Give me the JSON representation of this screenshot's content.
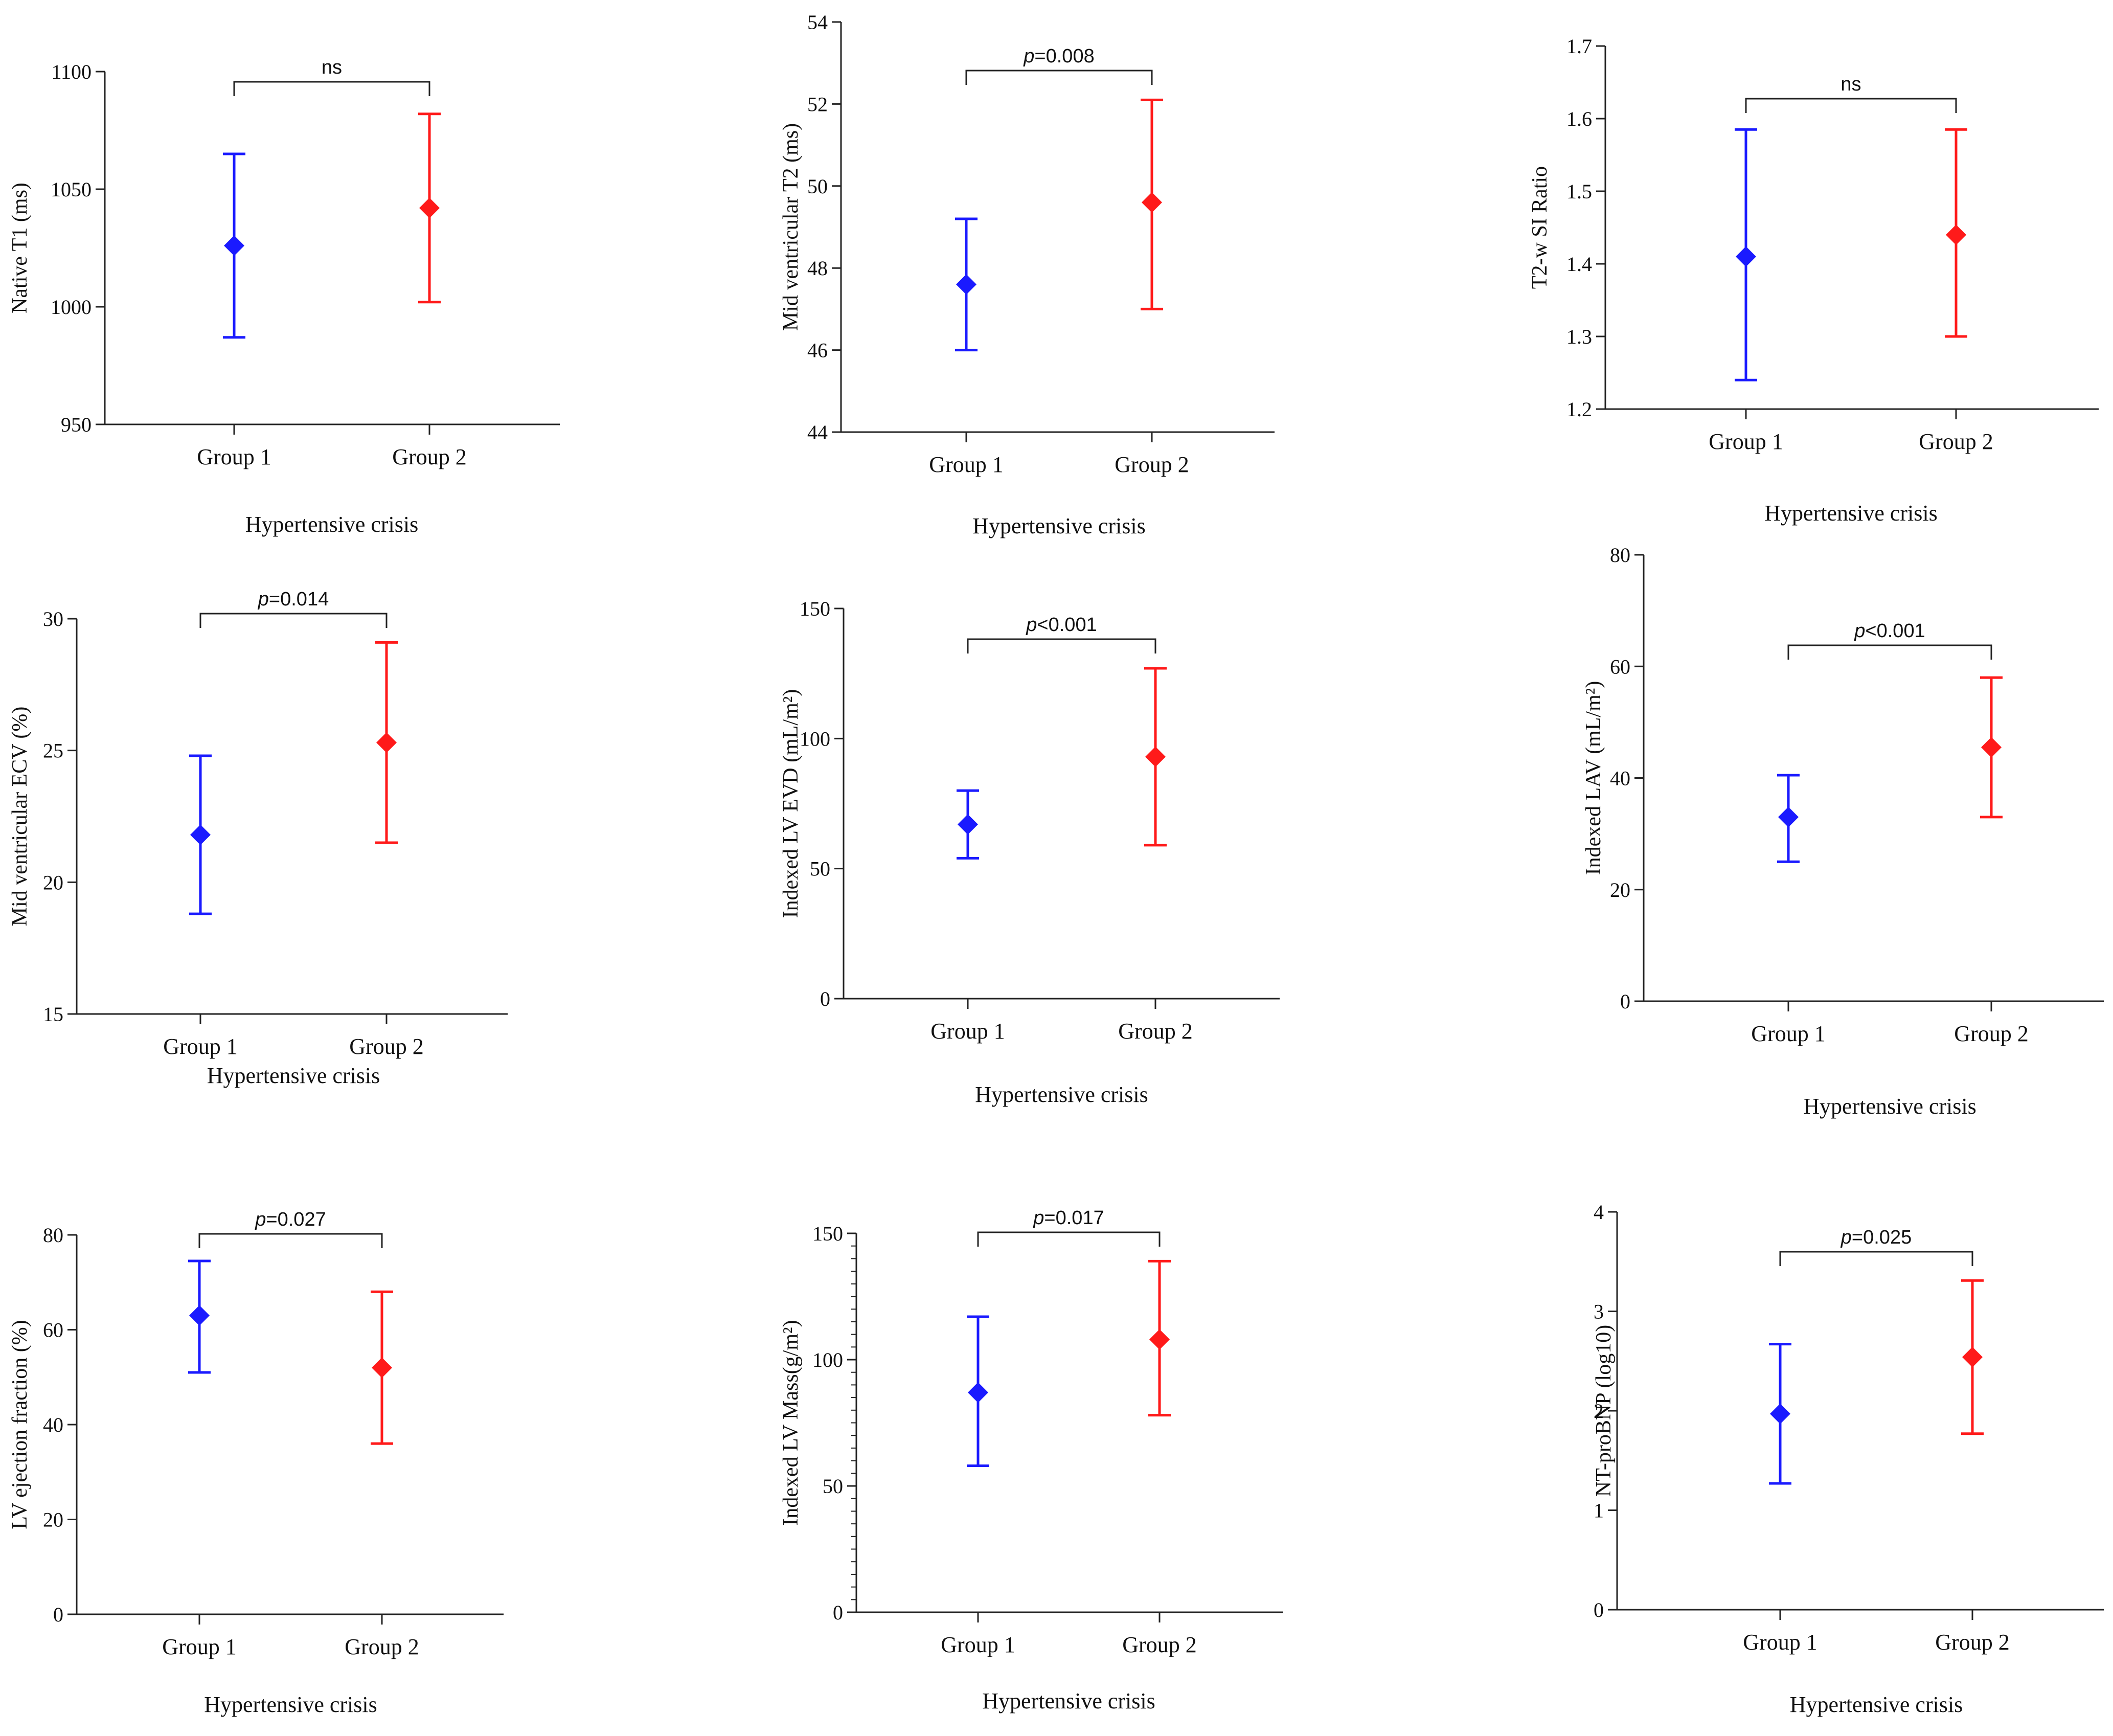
{
  "chart_data": [
    {
      "type": "scatter",
      "ylabel": "Native T1 (ms)",
      "xlabel": "Hypertensive crisis",
      "categories": [
        "Group 1",
        "Group 2"
      ],
      "ylim": [
        950,
        1100
      ],
      "yticks": [
        950,
        1000,
        1050,
        1100
      ],
      "series": [
        {
          "category": "Group 1",
          "mean": 1026,
          "lower": 987,
          "upper": 1065,
          "color": "#1a1aff"
        },
        {
          "category": "Group 2",
          "mean": 1042,
          "lower": 1002,
          "upper": 1082,
          "color": "#ff1a1a"
        }
      ],
      "significance": {
        "prefix": "",
        "label": "ns"
      }
    },
    {
      "type": "scatter",
      "ylabel": "Mid ventricular T2 (ms)",
      "xlabel": "Hypertensive crisis",
      "categories": [
        "Group 1",
        "Group 2"
      ],
      "ylim": [
        44,
        54
      ],
      "yticks": [
        44,
        46,
        48,
        50,
        52,
        54
      ],
      "series": [
        {
          "category": "Group 1",
          "mean": 47.6,
          "lower": 46.0,
          "upper": 49.2,
          "color": "#1a1aff"
        },
        {
          "category": "Group 2",
          "mean": 49.6,
          "lower": 47.0,
          "upper": 52.1,
          "color": "#ff1a1a"
        }
      ],
      "significance": {
        "prefix": "p",
        "label": "=0.008"
      }
    },
    {
      "type": "scatter",
      "ylabel": "T2-w SI Ratio",
      "xlabel": "Hypertensive crisis",
      "categories": [
        "Group 1",
        "Group 2"
      ],
      "ylim": [
        1.2,
        1.7
      ],
      "yticks": [
        1.2,
        1.3,
        1.4,
        1.5,
        1.6,
        1.7
      ],
      "series": [
        {
          "category": "Group 1",
          "mean": 1.41,
          "lower": 1.24,
          "upper": 1.585,
          "color": "#1a1aff"
        },
        {
          "category": "Group 2",
          "mean": 1.44,
          "lower": 1.3,
          "upper": 1.585,
          "color": "#ff1a1a"
        }
      ],
      "significance": {
        "prefix": "",
        "label": "ns"
      }
    },
    {
      "type": "scatter",
      "ylabel": "Mid ventricular ECV (%)",
      "xlabel": "Hypertensive crisis",
      "categories": [
        "Group 1",
        "Group 2"
      ],
      "ylim": [
        15,
        30
      ],
      "yticks": [
        15,
        20,
        25,
        30
      ],
      "series": [
        {
          "category": "Group 1",
          "mean": 21.8,
          "lower": 18.8,
          "upper": 24.8,
          "color": "#1a1aff"
        },
        {
          "category": "Group 2",
          "mean": 25.3,
          "lower": 21.5,
          "upper": 29.1,
          "color": "#ff1a1a"
        }
      ],
      "significance": {
        "prefix": "p",
        "label": "=0.014"
      }
    },
    {
      "type": "scatter",
      "ylabel": "Indexed LV EVD (mL/m²)",
      "xlabel": "Hypertensive crisis",
      "categories": [
        "Group 1",
        "Group 2"
      ],
      "ylim": [
        0,
        150
      ],
      "yticks": [
        0,
        50,
        100,
        150
      ],
      "series": [
        {
          "category": "Group 1",
          "mean": 67,
          "lower": 54,
          "upper": 80,
          "color": "#1a1aff"
        },
        {
          "category": "Group 2",
          "mean": 93,
          "lower": 59,
          "upper": 127,
          "color": "#ff1a1a"
        }
      ],
      "significance": {
        "prefix": "p",
        "label": "<0.001"
      }
    },
    {
      "type": "scatter",
      "ylabel": "Indexed LAV (mL/m²)",
      "xlabel": "Hypertensive crisis",
      "categories": [
        "Group 1",
        "Group 2"
      ],
      "ylim": [
        0,
        80
      ],
      "yticks": [
        0,
        20,
        40,
        60,
        80
      ],
      "series": [
        {
          "category": "Group 1",
          "mean": 33,
          "lower": 25,
          "upper": 40.5,
          "color": "#1a1aff"
        },
        {
          "category": "Group 2",
          "mean": 45.5,
          "lower": 33,
          "upper": 58,
          "color": "#ff1a1a"
        }
      ],
      "significance": {
        "prefix": "p",
        "label": "<0.001"
      }
    },
    {
      "type": "scatter",
      "ylabel": "LV ejection fraction (%)",
      "xlabel": "Hypertensive crisis",
      "categories": [
        "Group 1",
        "Group 2"
      ],
      "ylim": [
        0,
        80
      ],
      "yticks": [
        0,
        20,
        40,
        60,
        80
      ],
      "series": [
        {
          "category": "Group 1",
          "mean": 63,
          "lower": 51,
          "upper": 74.5,
          "color": "#1a1aff"
        },
        {
          "category": "Group 2",
          "mean": 52,
          "lower": 36,
          "upper": 68,
          "color": "#ff1a1a"
        }
      ],
      "significance": {
        "prefix": "p",
        "label": "=0.027"
      }
    },
    {
      "type": "scatter",
      "ylabel": "Indexed LV Mass(g/m²)",
      "xlabel": "Hypertensive crisis",
      "categories": [
        "Group 1",
        "Group 2"
      ],
      "ylim": [
        0,
        150
      ],
      "yticks": [
        0,
        50,
        100,
        150
      ],
      "series": [
        {
          "category": "Group 1",
          "mean": 87,
          "lower": 58,
          "upper": 117,
          "color": "#1a1aff"
        },
        {
          "category": "Group 2",
          "mean": 108,
          "lower": 78,
          "upper": 139,
          "color": "#ff1a1a"
        }
      ],
      "significance": {
        "prefix": "p",
        "label": "=0.017"
      }
    },
    {
      "type": "scatter",
      "ylabel": "NT-proBNP (log10)",
      "xlabel": "Hypertensive crisis",
      "categories": [
        "Group 1",
        "Group 2"
      ],
      "ylim": [
        0,
        4
      ],
      "yticks": [
        0,
        1,
        2,
        3,
        4
      ],
      "series": [
        {
          "category": "Group 1",
          "mean": 1.97,
          "lower": 1.27,
          "upper": 2.67,
          "color": "#1a1aff"
        },
        {
          "category": "Group 2",
          "mean": 2.54,
          "lower": 1.77,
          "upper": 3.31,
          "color": "#ff1a1a"
        }
      ],
      "significance": {
        "prefix": "p",
        "label": "=0.025"
      }
    }
  ]
}
